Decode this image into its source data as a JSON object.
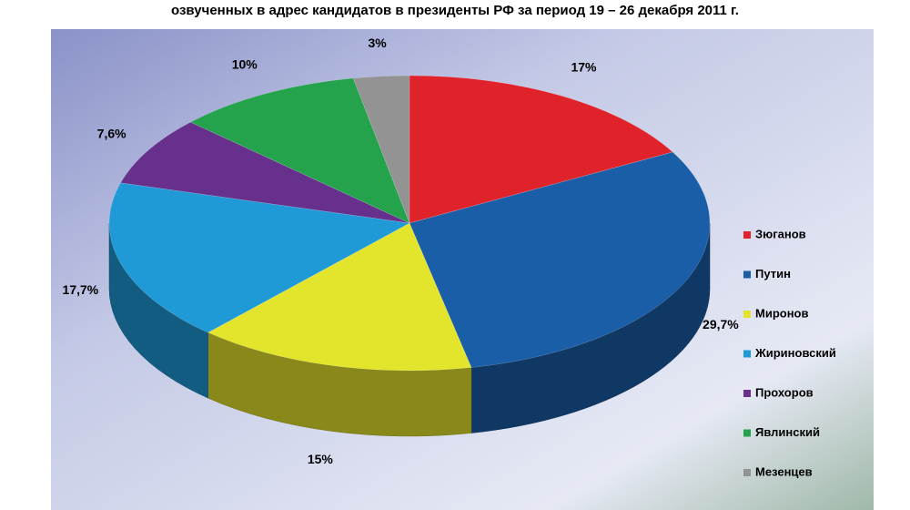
{
  "chart_data": {
    "type": "pie",
    "title": "озвученных в адрес кандидатов в президенты РФ за период 19 – 26 декабря 2011 г.",
    "categories": [
      "Зюганов",
      "Путин",
      "Миронов",
      "Жириновский",
      "Прохоров",
      "Явлинский",
      "Мезенцев"
    ],
    "values": [
      17,
      29.7,
      15,
      17.7,
      7.6,
      10,
      3
    ],
    "value_labels": [
      "17%",
      "29,7%",
      "15%",
      "17,7%",
      "7,6%",
      "10%",
      "3%"
    ],
    "colors": [
      "#e0222a",
      "#1b5ea8",
      "#e3e42c",
      "#1f9ad7",
      "#66308c",
      "#24a24c",
      "#939393"
    ],
    "legend": "right"
  }
}
